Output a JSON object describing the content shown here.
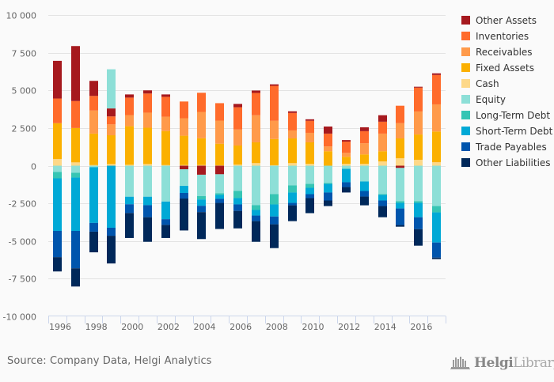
{
  "chart_data": {
    "type": "bar",
    "stacked": true,
    "title": "",
    "xlabel": "",
    "ylabel": "",
    "ylim": [
      -10000,
      10000
    ],
    "yticks": [
      10000,
      7500,
      5000,
      2500,
      0,
      -2500,
      -5000,
      -7500,
      -10000
    ],
    "ytick_labels": [
      "10 000",
      "7 500",
      "5 000",
      "2 500",
      "0",
      "-2 500",
      "-5 000",
      "-7 500",
      "-10 000"
    ],
    "categories": [
      "1996",
      "1997",
      "1998",
      "1999",
      "2000",
      "2001",
      "2002",
      "2003",
      "2004",
      "2005",
      "2006",
      "2007",
      "2008",
      "2009",
      "2010",
      "2011",
      "2012",
      "2013",
      "2014",
      "2015",
      "2016",
      "2017"
    ],
    "xtick_labels": [
      "1996",
      "",
      "1998",
      "",
      "2000",
      "",
      "2002",
      "",
      "2004",
      "",
      "2006",
      "",
      "2008",
      "",
      "2010",
      "",
      "2012",
      "",
      "2014",
      "",
      "2016",
      ""
    ],
    "grid": true,
    "legend_position": "right",
    "series": [
      {
        "name": "Other Assets",
        "color": "#A6191E",
        "values": [
          2500,
          3650,
          1000,
          530,
          210,
          210,
          160,
          -240,
          -600,
          -570,
          220,
          160,
          100,
          110,
          100,
          470,
          100,
          260,
          430,
          -150,
          60,
          110
        ]
      },
      {
        "name": "Inventories",
        "color": "#FF6B2B",
        "values": [
          1640,
          1790,
          970,
          530,
          1160,
          1270,
          1320,
          1110,
          1270,
          1160,
          1480,
          1480,
          2320,
          1160,
          800,
          850,
          750,
          800,
          790,
          1160,
          1580,
          1950
        ]
      },
      {
        "name": "Receivables",
        "color": "#FF9A4A",
        "values": [
          0,
          0,
          1530,
          720,
          740,
          1000,
          950,
          1160,
          1750,
          1530,
          1060,
          1800,
          1210,
          530,
          630,
          320,
          260,
          740,
          1170,
          1010,
          1530,
          1800
        ]
      },
      {
        "name": "Fixed Assets",
        "color": "#FBB000",
        "values": [
          2380,
          2280,
          2090,
          1910,
          2560,
          2410,
          2260,
          1950,
          1780,
          1440,
          1270,
          1380,
          1740,
          1640,
          1430,
          960,
          470,
          630,
          680,
          1320,
          1680,
          2040
        ]
      },
      {
        "name": "Cash",
        "color": "#FDD888",
        "values": [
          440,
          220,
          40,
          110,
          60,
          110,
          40,
          40,
          40,
          20,
          70,
          170,
          30,
          170,
          120,
          0,
          120,
          120,
          280,
          490,
          390,
          230
        ]
      },
      {
        "name": "Equity",
        "color": "#8DDFD7",
        "values": [
          -420,
          -470,
          -100,
          2600,
          -2060,
          -2060,
          -2380,
          -1100,
          -1420,
          -1260,
          -1670,
          -2620,
          -1890,
          -1310,
          -1210,
          -1150,
          -210,
          -1050,
          -1890,
          -2210,
          -2360,
          -2680
        ]
      },
      {
        "name": "Long-Term Debt",
        "color": "#36C5B4",
        "values": [
          -420,
          -320,
          0,
          0,
          0,
          0,
          0,
          0,
          -220,
          -110,
          -480,
          -320,
          -680,
          -470,
          -260,
          -60,
          0,
          0,
          -50,
          -110,
          -110,
          -420
        ]
      },
      {
        "name": "Short-Term Debt",
        "color": "#00A9D6",
        "values": [
          -3490,
          -3540,
          -3700,
          -4120,
          -500,
          -560,
          -1170,
          -470,
          -420,
          -260,
          -420,
          -370,
          -800,
          -690,
          -420,
          -570,
          -890,
          -630,
          -370,
          -370,
          -950,
          -2000
        ]
      },
      {
        "name": "Trade Payables",
        "color": "#0055AD",
        "values": [
          -1740,
          -2480,
          -580,
          -530,
          -580,
          -800,
          -380,
          -370,
          -420,
          -270,
          -430,
          -370,
          -520,
          -160,
          -260,
          -530,
          -320,
          -370,
          -370,
          -1100,
          -790,
          -1000
        ]
      },
      {
        "name": "Other Liabilities",
        "color": "#00285A",
        "values": [
          -950,
          -1210,
          -1370,
          -1840,
          -1660,
          -1630,
          -870,
          -2120,
          -1790,
          -1730,
          -1160,
          -1370,
          -1580,
          -1050,
          -1000,
          -370,
          -360,
          -580,
          -740,
          -110,
          -1100,
          -100
        ]
      }
    ]
  },
  "footer": {
    "source": "Source: Company Data, Helgi Analytics",
    "logo_brand_bold": "Helgi",
    "logo_brand_light": "Library."
  }
}
